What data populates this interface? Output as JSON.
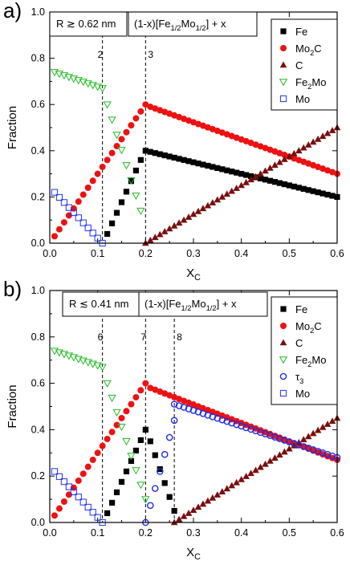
{
  "colors": {
    "Fe": "#000000",
    "Mo2C": "#ee1111",
    "C": "#7a0e0e",
    "Fe2Mo": "#22bb22",
    "tau3": "#1f2fe0",
    "Mo": "#2233ee"
  },
  "chart_data": [
    {
      "type": "scatter",
      "panel_label": "a)",
      "xlabel": "X",
      "xlabel_sub": "C",
      "ylabel": "Fraction",
      "xlim": [
        0.0,
        0.6
      ],
      "ylim": [
        0.0,
        1.0
      ],
      "xticks": [
        "0.0",
        "0.1",
        "0.2",
        "0.3",
        "0.4",
        "0.5",
        "0.6"
      ],
      "yticks": [
        "0.0",
        "0.2",
        "0.4",
        "0.6",
        "0.8",
        "1.0"
      ],
      "annotation_radius": "R ≳ 0.62 nm",
      "annotation_formula": {
        "pre": "(1-x)[Fe",
        "s1": "1/2",
        "mid": "Mo",
        "s2": "1/2",
        "post": "] + x"
      },
      "vlines": [
        {
          "x": 0.11,
          "label": "2"
        },
        {
          "x": 0.2,
          "label": "3"
        }
      ],
      "legend": [
        {
          "key": "Fe",
          "text": "Fe",
          "sub": "",
          "post": "",
          "marker": "square-filled"
        },
        {
          "key": "Mo2C",
          "text": "Mo",
          "sub": "2",
          "post": "C",
          "marker": "circle-filled"
        },
        {
          "key": "C",
          "text": "C",
          "sub": "",
          "post": "",
          "marker": "triangle-up-filled"
        },
        {
          "key": "Fe2Mo",
          "text": "Fe",
          "sub": "2",
          "post": "Mo",
          "marker": "triangle-down-open"
        },
        {
          "key": "Mo",
          "text": "Mo",
          "sub": "",
          "post": "",
          "marker": "square-open"
        }
      ],
      "series": [
        {
          "key": "Fe",
          "marker": "square-filled",
          "segments": [
            {
              "x0": 0.12,
              "y0": 0.04,
              "x1": 0.19,
              "y1": 0.36,
              "n": 8
            },
            {
              "x0": 0.2,
              "y0": 0.4,
              "x1": 0.6,
              "y1": 0.2,
              "n": 41
            }
          ]
        },
        {
          "key": "Mo2C",
          "marker": "circle-filled",
          "segments": [
            {
              "x0": 0.01,
              "y0": 0.03,
              "x1": 0.2,
              "y1": 0.6,
              "n": 20
            },
            {
              "x0": 0.21,
              "y0": 0.59,
              "x1": 0.6,
              "y1": 0.3,
              "n": 40
            }
          ]
        },
        {
          "key": "C",
          "marker": "triangle-up-filled",
          "segments": [
            {
              "x0": 0.2,
              "y0": 0.0,
              "x1": 0.6,
              "y1": 0.5,
              "n": 41
            }
          ]
        },
        {
          "key": "Fe2Mo",
          "marker": "triangle-down-open",
          "segments": [
            {
              "x0": 0.01,
              "y0": 0.74,
              "x1": 0.11,
              "y1": 0.67,
              "n": 11
            },
            {
              "x0": 0.12,
              "y0": 0.6,
              "x1": 0.19,
              "y1": 0.14,
              "n": 8
            }
          ]
        },
        {
          "key": "Mo",
          "marker": "square-open",
          "segments": [
            {
              "x0": 0.01,
              "y0": 0.22,
              "x1": 0.11,
              "y1": 0.0,
              "n": 11
            }
          ]
        }
      ]
    },
    {
      "type": "scatter",
      "panel_label": "b)",
      "xlabel": "X",
      "xlabel_sub": "C",
      "ylabel": "Fraction",
      "xlim": [
        0.0,
        0.6
      ],
      "ylim": [
        0.0,
        1.0
      ],
      "xticks": [
        "0.0",
        "0.1",
        "0.2",
        "0.3",
        "0.4",
        "0.5",
        "0.6"
      ],
      "yticks": [
        "0.0",
        "0.2",
        "0.4",
        "0.6",
        "0.8",
        "1.0"
      ],
      "annotation_radius": "R ≲ 0.41 nm",
      "annotation_formula": {
        "pre": "(1-x)[Fe",
        "s1": "1/2",
        "mid": "Mo",
        "s2": "1/2",
        "post": "] + x"
      },
      "vlines": [
        {
          "x": 0.11,
          "label": "6"
        },
        {
          "x": 0.2,
          "label": "7"
        },
        {
          "x": 0.26,
          "label": "8"
        }
      ],
      "legend": [
        {
          "key": "Fe",
          "text": "Fe",
          "sub": "",
          "post": "",
          "marker": "square-filled"
        },
        {
          "key": "Mo2C",
          "text": "Mo",
          "sub": "2",
          "post": "C",
          "marker": "circle-filled"
        },
        {
          "key": "C",
          "text": "C",
          "sub": "",
          "post": "",
          "marker": "triangle-up-filled"
        },
        {
          "key": "Fe2Mo",
          "text": "Fe",
          "sub": "2",
          "post": "Mo",
          "marker": "triangle-down-open"
        },
        {
          "key": "tau3",
          "text": "τ",
          "sub": "3",
          "post": "",
          "marker": "circle-open"
        },
        {
          "key": "Mo",
          "text": "Mo",
          "sub": "",
          "post": "",
          "marker": "square-open"
        }
      ],
      "series": [
        {
          "key": "Fe",
          "marker": "square-filled",
          "segments": [
            {
              "x0": 0.12,
              "y0": 0.04,
              "x1": 0.2,
              "y1": 0.4,
              "n": 9
            },
            {
              "x0": 0.21,
              "y0": 0.35,
              "x1": 0.26,
              "y1": 0.05,
              "n": 6
            }
          ]
        },
        {
          "key": "Mo2C",
          "marker": "circle-filled",
          "segments": [
            {
              "x0": 0.01,
              "y0": 0.03,
              "x1": 0.2,
              "y1": 0.6,
              "n": 20
            },
            {
              "x0": 0.21,
              "y0": 0.58,
              "x1": 0.6,
              "y1": 0.27,
              "n": 40
            }
          ]
        },
        {
          "key": "C",
          "marker": "triangle-up-filled",
          "segments": [
            {
              "x0": 0.26,
              "y0": 0.0,
              "x1": 0.6,
              "y1": 0.45,
              "n": 35
            }
          ]
        },
        {
          "key": "Fe2Mo",
          "marker": "triangle-down-open",
          "segments": [
            {
              "x0": 0.01,
              "y0": 0.74,
              "x1": 0.11,
              "y1": 0.67,
              "n": 11
            },
            {
              "x0": 0.12,
              "y0": 0.6,
              "x1": 0.2,
              "y1": 0.1,
              "n": 9
            }
          ]
        },
        {
          "key": "tau3",
          "marker": "circle-open",
          "segments": [
            {
              "x0": 0.2,
              "y0": 0.0,
              "x1": 0.26,
              "y1": 0.44,
              "n": 7
            },
            {
              "x0": 0.26,
              "y0": 0.51,
              "x1": 0.6,
              "y1": 0.28,
              "n": 35
            }
          ]
        },
        {
          "key": "Mo",
          "marker": "square-open",
          "segments": [
            {
              "x0": 0.01,
              "y0": 0.22,
              "x1": 0.11,
              "y1": 0.0,
              "n": 11
            }
          ]
        }
      ]
    }
  ]
}
